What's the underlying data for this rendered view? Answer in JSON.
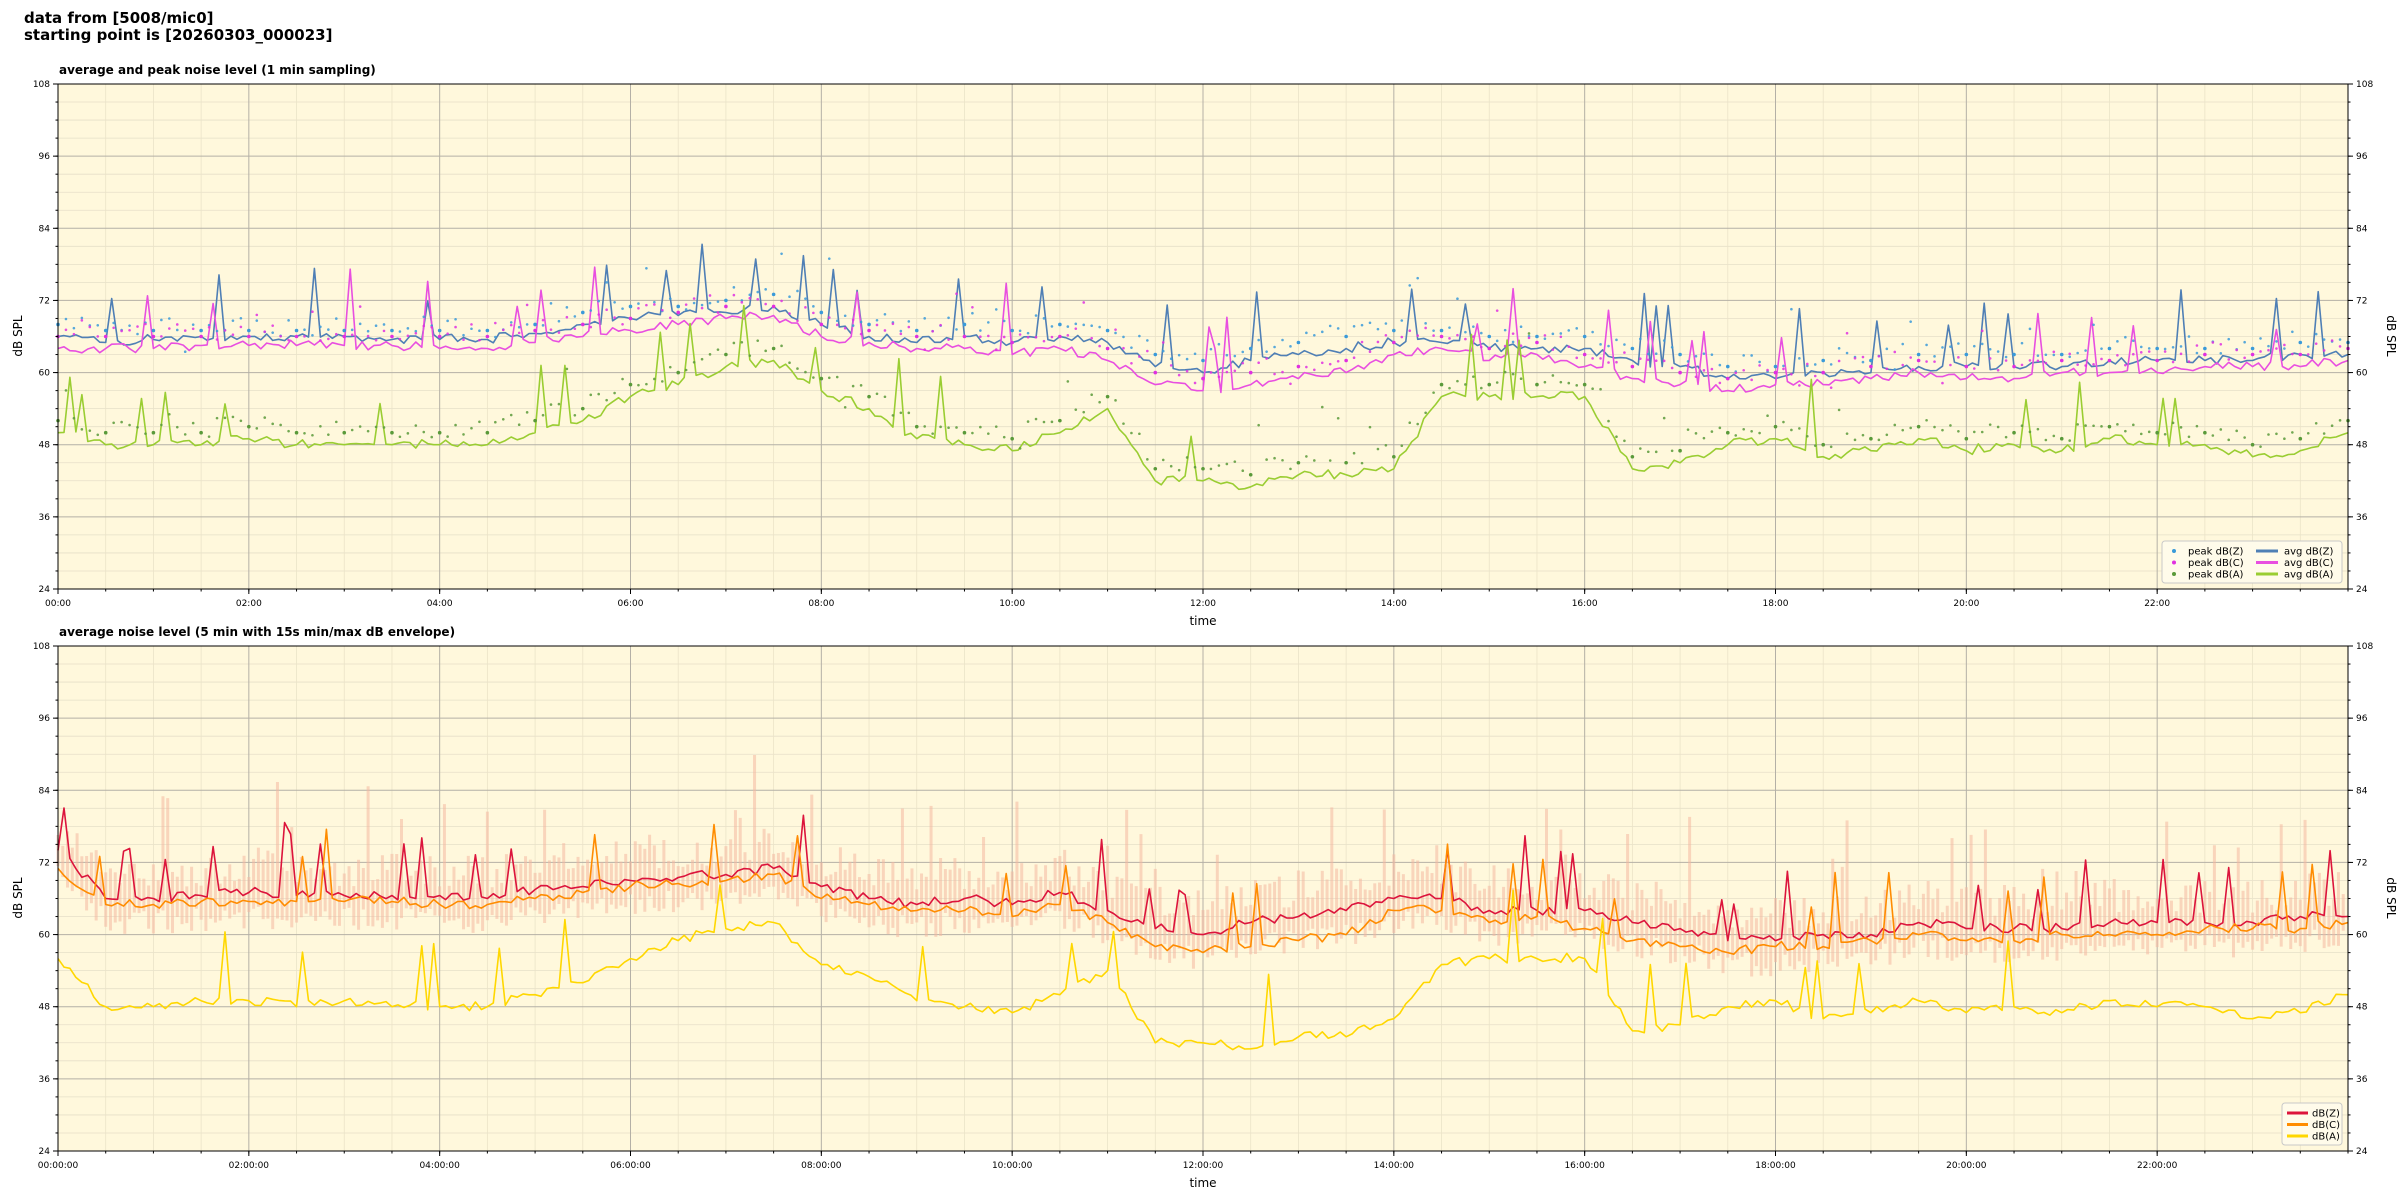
{
  "header": {
    "line1": "data from [5008/mic0]",
    "line2": "starting point is [20260303_000023]"
  },
  "colors": {
    "background": "#fff8dc",
    "dBZ": "#4f7fb5",
    "dBC": "#e84fe0",
    "dBA": "#9acd32",
    "dBZ_5min": "#dc143c",
    "dBC_5min": "#ff8c00",
    "dBA_5min": "#ffd700",
    "envelope": "#f4b8a0"
  },
  "chart_data": [
    {
      "type": "line",
      "title": "average and peak noise level (1 min sampling)",
      "xlabel": "time",
      "ylabel": "dB SPL",
      "ylim": [
        24,
        108
      ],
      "yticks": [
        "24",
        "36",
        "48",
        "60",
        "72",
        "84",
        "96",
        "108"
      ],
      "xlim_hours": [
        0,
        24
      ],
      "xticks": [
        "00:00",
        "02:00",
        "04:00",
        "06:00",
        "08:00",
        "10:00",
        "12:00",
        "14:00",
        "16:00",
        "18:00",
        "20:00",
        "22:00"
      ],
      "grid": true,
      "legend_position": "bottom-right",
      "x_hours": [
        0,
        0.5,
        1,
        1.5,
        2,
        2.5,
        3,
        3.5,
        4,
        4.5,
        5,
        5.5,
        6,
        6.5,
        7,
        7.5,
        8,
        8.5,
        9,
        9.5,
        10,
        10.5,
        11,
        11.5,
        12,
        12.5,
        13,
        13.5,
        14,
        14.5,
        15,
        15.5,
        16,
        16.5,
        17,
        17.5,
        18,
        18.5,
        19,
        19.5,
        20,
        20.5,
        21,
        21.5,
        22,
        22.5,
        23,
        23.5,
        24
      ],
      "series": [
        {
          "name": "avg dB(Z)",
          "kind": "line",
          "color": "#4f7fb5",
          "values": [
            66,
            65,
            65.5,
            66,
            66,
            66,
            66,
            65.5,
            65.5,
            65.5,
            66.5,
            68,
            69,
            69.5,
            70,
            71,
            68,
            66,
            65,
            66,
            65,
            66,
            65,
            61,
            60,
            62,
            63,
            64,
            65,
            65,
            64,
            64,
            64,
            62,
            61,
            59,
            59,
            60,
            60,
            61,
            61,
            61,
            61,
            62,
            62,
            62,
            62,
            63,
            63
          ]
        },
        {
          "name": "avg dB(C)",
          "kind": "line",
          "color": "#e84fe0",
          "values": [
            64,
            64,
            64,
            64.5,
            64.5,
            64.5,
            64.5,
            64.5,
            64,
            64,
            65,
            66,
            67,
            68,
            69,
            69.5,
            66,
            65,
            64,
            64,
            63,
            64,
            62,
            58,
            57,
            58,
            59,
            60,
            63,
            64,
            62,
            63,
            61,
            59,
            58,
            57,
            58,
            58,
            59,
            60,
            59,
            59,
            60,
            60,
            60,
            61,
            61,
            61,
            62
          ]
        },
        {
          "name": "avg dB(A)",
          "kind": "line",
          "color": "#9acd32",
          "values": [
            50,
            48,
            48,
            48,
            49,
            48,
            48,
            48,
            48,
            48,
            50,
            52,
            56,
            58,
            61,
            62,
            57,
            54,
            49,
            48,
            47,
            50,
            54,
            42,
            42,
            41,
            43,
            43,
            44,
            56,
            56,
            56,
            56,
            44,
            45,
            48,
            49,
            46,
            47,
            49,
            47,
            48,
            47,
            49,
            48,
            48,
            46,
            47,
            50
          ]
        },
        {
          "name": "peak dB(Z)",
          "kind": "points",
          "color": "#3a9ad9",
          "values": [
            68,
            67,
            67,
            67,
            67,
            67,
            67,
            67,
            67,
            67,
            68,
            70,
            71,
            71,
            72,
            73,
            70,
            68,
            67,
            68,
            67,
            68,
            67,
            63,
            62,
            64,
            65,
            66,
            67,
            67,
            66,
            66,
            66,
            64,
            63,
            61,
            61,
            62,
            62,
            63,
            63,
            63,
            63,
            64,
            64,
            64,
            64,
            65,
            65
          ]
        },
        {
          "name": "peak dB(C)",
          "kind": "points",
          "color": "#e030e0",
          "values": [
            66,
            66,
            66,
            66,
            66,
            66,
            66,
            66,
            66,
            66,
            67,
            68,
            69,
            70,
            71,
            71,
            68,
            67,
            66,
            66,
            65,
            66,
            64,
            60,
            59,
            60,
            61,
            62,
            65,
            66,
            64,
            65,
            63,
            61,
            60,
            59,
            60,
            60,
            61,
            62,
            61,
            61,
            62,
            62,
            62,
            63,
            63,
            63,
            64
          ]
        },
        {
          "name": "peak dB(A)",
          "kind": "points",
          "color": "#5a9a3a",
          "values": [
            52,
            50,
            50,
            50,
            51,
            50,
            50,
            50,
            50,
            50,
            52,
            54,
            58,
            60,
            63,
            64,
            59,
            56,
            51,
            50,
            49,
            52,
            56,
            44,
            44,
            43,
            45,
            45,
            46,
            58,
            58,
            58,
            58,
            46,
            47,
            50,
            51,
            48,
            49,
            51,
            49,
            50,
            49,
            51,
            50,
            50,
            48,
            49,
            52
          ]
        }
      ]
    },
    {
      "type": "line",
      "title": "average noise level (5 min with 15s min/max dB envelope)",
      "xlabel": "time",
      "ylabel": "dB SPL",
      "ylim": [
        24,
        108
      ],
      "yticks": [
        "24",
        "36",
        "48",
        "60",
        "72",
        "84",
        "96",
        "108"
      ],
      "xlim_hours": [
        0,
        24
      ],
      "xticks": [
        "00:00:00",
        "02:00:00",
        "04:00:00",
        "06:00:00",
        "08:00:00",
        "10:00:00",
        "12:00:00",
        "14:00:00",
        "16:00:00",
        "18:00:00",
        "20:00:00",
        "22:00:00"
      ],
      "grid": true,
      "legend_position": "bottom-right",
      "x_hours": [
        0,
        0.5,
        1,
        1.5,
        2,
        2.5,
        3,
        3.5,
        4,
        4.5,
        5,
        5.5,
        6,
        6.5,
        7,
        7.5,
        8,
        8.5,
        9,
        9.5,
        10,
        10.5,
        11,
        11.5,
        12,
        12.5,
        13,
        13.5,
        14,
        14.5,
        15,
        15.5,
        16,
        16.5,
        17,
        17.5,
        18,
        18.5,
        19,
        19.5,
        20,
        20.5,
        21,
        21.5,
        22,
        22.5,
        23,
        23.5,
        24
      ],
      "series": [
        {
          "name": "dB(Z)",
          "kind": "line",
          "color": "#dc143c",
          "values": [
            74,
            66,
            66,
            66.5,
            67,
            66.5,
            66.5,
            66.5,
            66.5,
            66,
            67.5,
            68,
            69,
            69.5,
            70,
            71,
            68,
            66,
            65,
            66,
            65,
            67,
            64,
            61,
            60,
            62,
            63,
            64,
            66,
            66,
            64,
            64,
            64,
            62,
            61,
            59,
            59,
            60,
            60,
            62,
            61,
            61,
            61,
            62,
            62,
            62,
            62,
            63,
            63
          ]
        },
        {
          "name": "dB(C)",
          "kind": "line",
          "color": "#ff8c00",
          "values": [
            71,
            65,
            65,
            65.5,
            65.5,
            65.5,
            65.5,
            65.5,
            65,
            65,
            66,
            67,
            68,
            68.5,
            69,
            70,
            66,
            65,
            64,
            64,
            63,
            65,
            62,
            58,
            57,
            58,
            59,
            60,
            64,
            64,
            62,
            63,
            61,
            59,
            58,
            57,
            58,
            58,
            59,
            60,
            59,
            59,
            60,
            60,
            60,
            61,
            61,
            61,
            62
          ]
        },
        {
          "name": "dB(A)",
          "kind": "line",
          "color": "#ffd700",
          "values": [
            56,
            48,
            48,
            49,
            49,
            48,
            49,
            48,
            48,
            48,
            50,
            52,
            56,
            59,
            61,
            62,
            55,
            53,
            49,
            48,
            47,
            50,
            54,
            42,
            42,
            41,
            43,
            43,
            46,
            55,
            56,
            56,
            56,
            44,
            45,
            48,
            49,
            46,
            47,
            49,
            47,
            48,
            47,
            49,
            48,
            48,
            46,
            47,
            50
          ]
        }
      ]
    }
  ]
}
